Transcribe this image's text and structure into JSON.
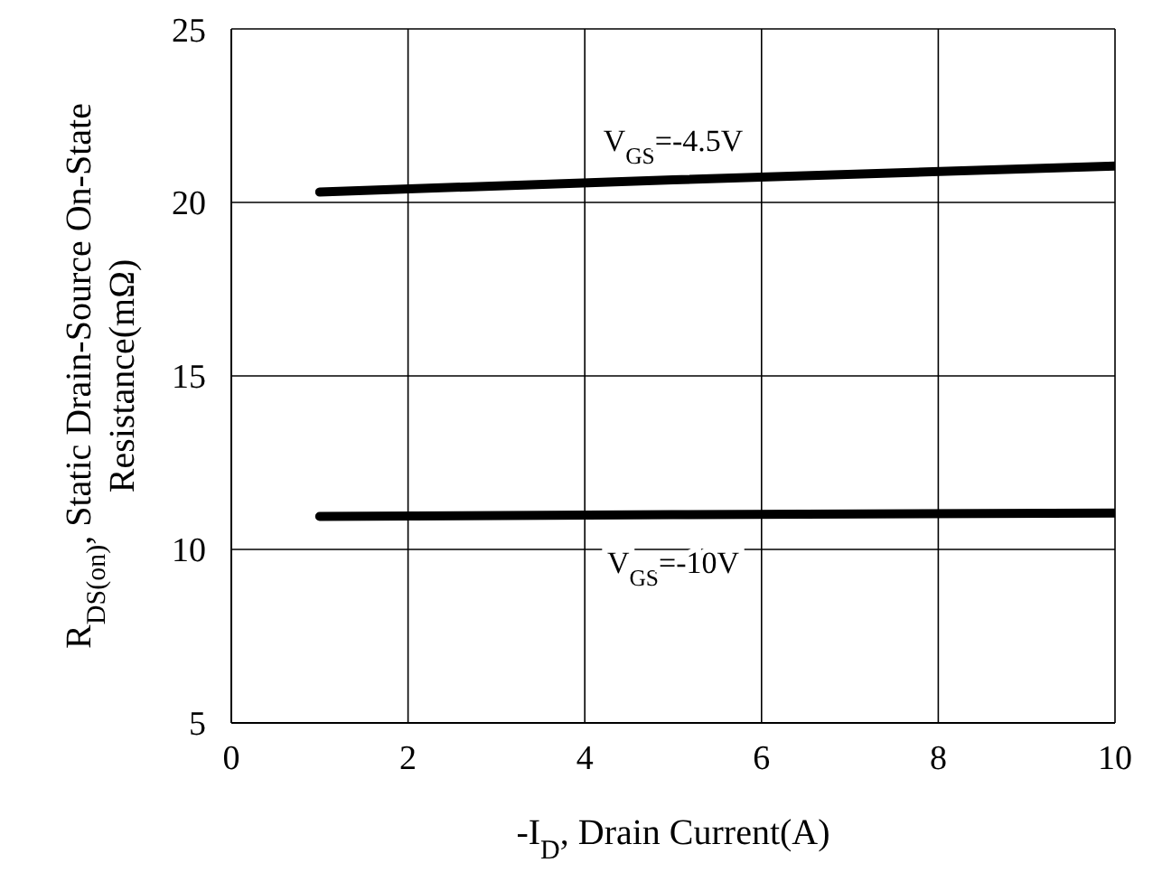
{
  "chart_data": {
    "type": "line",
    "xlabel": "-I$_{D}$, Drain Current(A)",
    "ylabel": "R$_{DS(on)}$, Static Drain-Source On-State Resistance(mΩ)",
    "x": [
      1,
      5,
      10
    ],
    "series": [
      {
        "name": "V$_{GS}$=-4.5V",
        "color": "#000000",
        "values": [
          20.3,
          20.65,
          21.05
        ]
      },
      {
        "name": "V$_{GS}$=-10V",
        "color": "#000000",
        "values": [
          10.95,
          11.0,
          11.05
        ]
      }
    ],
    "xlim": [
      0,
      10
    ],
    "xticks": [
      0,
      2,
      4,
      6,
      8,
      10
    ],
    "ylim": [
      5,
      25
    ],
    "yticks": [
      5,
      10,
      15,
      20,
      25
    ],
    "grid": true,
    "marker": "none",
    "line_style": "solid"
  }
}
